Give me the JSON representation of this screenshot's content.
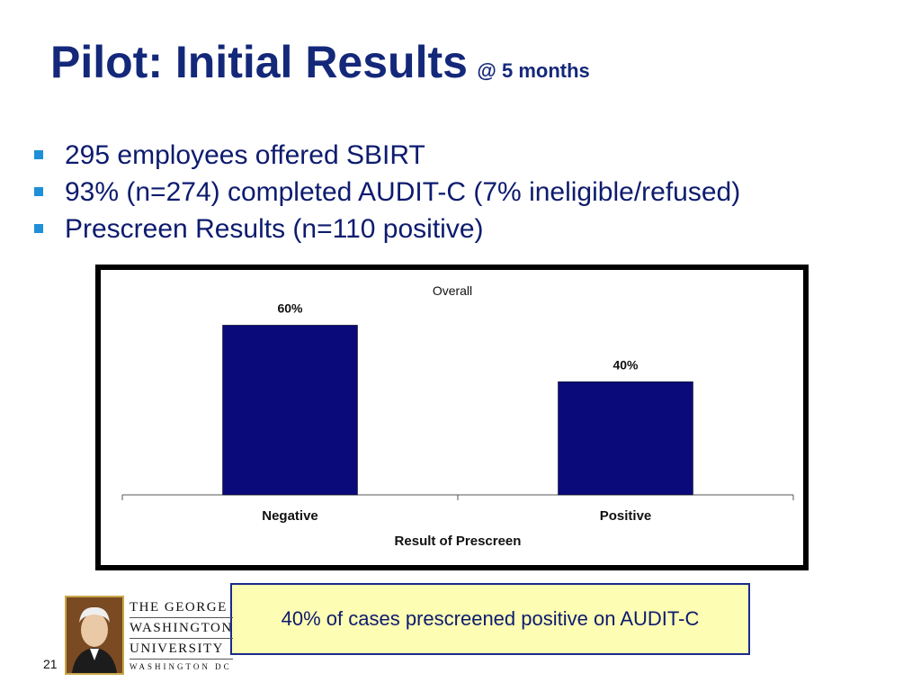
{
  "slide": {
    "title": "Pilot:  Initial Results",
    "title_suffix": "@ 5 months",
    "bullets": [
      "295 employees offered SBIRT",
      "93% (n=274) completed AUDIT-C (7% ineligible/refused)",
      "Prescreen Results (n=110 positive)"
    ],
    "callout": "40% of cases prescreened positive on AUDIT-C",
    "page_number": "21",
    "colors": {
      "title": "#14287a",
      "bullet": "#1e8fd8",
      "bar": "#0a0a7a",
      "callout_bg": "#fdfdb3"
    }
  },
  "logo": {
    "lines": [
      "THE GEORGE",
      "WASHINGTON",
      "UNIVERSITY",
      "WASHINGTON DC"
    ],
    "portrait_icon": "george-washington-portrait"
  },
  "chart_data": {
    "type": "bar",
    "title": "Overall",
    "xlabel": "Result of Prescreen",
    "ylabel": "",
    "categories": [
      "Negative",
      "Positive"
    ],
    "values": [
      60,
      40
    ],
    "data_labels": [
      "60%",
      "40%"
    ],
    "ylim": [
      0,
      70
    ],
    "grid": false,
    "legend": "none"
  }
}
